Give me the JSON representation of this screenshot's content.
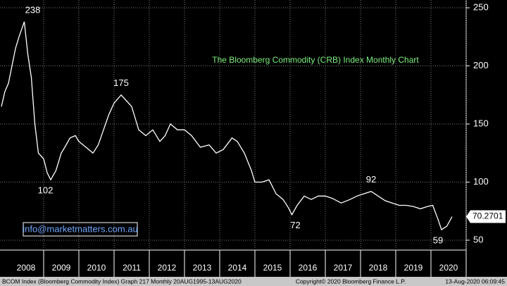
{
  "chart_data": {
    "type": "line",
    "title": "The Bloomberg Commodity (CRB) Index Monthly Chart",
    "watermark": "info@marketmatters.com.au",
    "footer_left": "BCOM Index (Bloomberg Commodity Index) Graph 217  Monthly 20AUG1995-13AUG2020",
    "footer_center": "Copyright© 2020 Bloomberg Finance L.P.",
    "footer_right": "13-Aug-2020 06:09:45",
    "last_price": 70.2701,
    "color": "#ffffff",
    "grid": true,
    "x": [
      2007.8,
      2007.9,
      2008.0,
      2008.1,
      2008.2,
      2008.3,
      2008.45,
      2008.55,
      2008.65,
      2008.75,
      2008.85,
      2009.0,
      2009.1,
      2009.2,
      2009.35,
      2009.5,
      2009.6,
      2009.75,
      2009.9,
      2010.0,
      2010.2,
      2010.4,
      2010.55,
      2010.7,
      2010.85,
      2011.0,
      2011.2,
      2011.35,
      2011.5,
      2011.7,
      2011.9,
      2012.1,
      2012.3,
      2012.45,
      2012.6,
      2012.8,
      2013.0,
      2013.2,
      2013.45,
      2013.7,
      2013.9,
      2014.1,
      2014.35,
      2014.5,
      2014.7,
      2014.9,
      2015.0,
      2015.2,
      2015.4,
      2015.6,
      2015.8,
      2015.95,
      2016.05,
      2016.2,
      2016.4,
      2016.6,
      2016.8,
      2017.0,
      2017.2,
      2017.45,
      2017.7,
      2017.9,
      2018.1,
      2018.3,
      2018.5,
      2018.7,
      2018.9,
      2019.1,
      2019.3,
      2019.5,
      2019.7,
      2019.9,
      2020.05,
      2020.2,
      2020.3,
      2020.45,
      2020.6
    ],
    "values": [
      165,
      178,
      185,
      200,
      215,
      225,
      238,
      210,
      190,
      150,
      125,
      120,
      108,
      102,
      110,
      125,
      130,
      138,
      140,
      135,
      130,
      125,
      132,
      145,
      158,
      168,
      175,
      170,
      165,
      145,
      140,
      145,
      135,
      140,
      150,
      145,
      145,
      140,
      130,
      132,
      125,
      128,
      138,
      135,
      125,
      110,
      100,
      100,
      102,
      90,
      85,
      78,
      72,
      80,
      88,
      85,
      88,
      88,
      86,
      82,
      85,
      88,
      90,
      92,
      88,
      84,
      82,
      80,
      80,
      79,
      77,
      79,
      80,
      68,
      59,
      62,
      70.27
    ],
    "annotations": [
      {
        "text": "238",
        "x": 2008.45,
        "y": 238
      },
      {
        "text": "102",
        "x": 2009.05,
        "y": 102
      },
      {
        "text": "175",
        "x": 2011.2,
        "y": 175
      },
      {
        "text": "72",
        "x": 2016.15,
        "y": 72
      },
      {
        "text": "92",
        "x": 2018.3,
        "y": 92
      },
      {
        "text": "59",
        "x": 2020.2,
        "y": 59
      }
    ],
    "xlim": [
      2007.76,
      2021.36
    ],
    "x_gridlines": [
      2009,
      2010,
      2011,
      2012,
      2013,
      2014,
      2015,
      2016,
      2017,
      2018,
      2019,
      2020,
      2021
    ],
    "xticks": [
      {
        "value": 2008.5,
        "label": "2008"
      },
      {
        "value": 2009.5,
        "label": "2009"
      },
      {
        "value": 2010.5,
        "label": "2010"
      },
      {
        "value": 2011.5,
        "label": "2011"
      },
      {
        "value": 2012.5,
        "label": "2012"
      },
      {
        "value": 2013.5,
        "label": "2013"
      },
      {
        "value": 2014.5,
        "label": "2014"
      },
      {
        "value": 2015.5,
        "label": "2015"
      },
      {
        "value": 2016.5,
        "label": "2016"
      },
      {
        "value": 2017.5,
        "label": "2017"
      },
      {
        "value": 2018.5,
        "label": "2018"
      },
      {
        "value": 2019.5,
        "label": "2019"
      },
      {
        "value": 2020.5,
        "label": "2020"
      }
    ],
    "ylim": [
      41.5,
      256.7
    ],
    "yticks": [
      50,
      100,
      150,
      200,
      250
    ]
  }
}
